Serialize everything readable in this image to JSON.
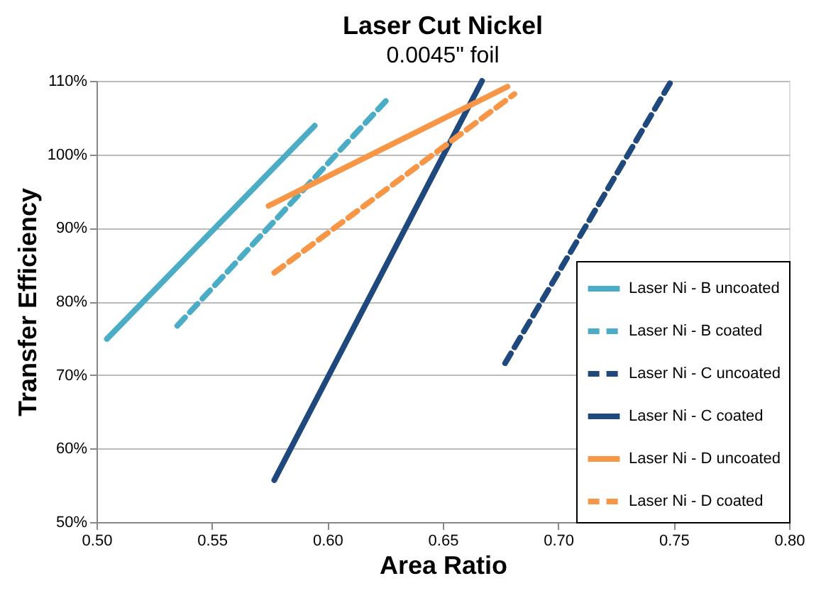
{
  "chart_data": {
    "type": "line",
    "title": "Laser Cut Nickel",
    "subtitle": "0.0045\" foil",
    "xlabel": "Area Ratio",
    "ylabel": "Transfer Efficiency",
    "xlim": [
      0.5,
      0.8
    ],
    "xticks": [
      {
        "value": 0.5,
        "label": "0.50"
      },
      {
        "value": 0.55,
        "label": "0.55"
      },
      {
        "value": 0.6,
        "label": "0.60"
      },
      {
        "value": 0.65,
        "label": "0.65"
      },
      {
        "value": 0.7,
        "label": "0.70"
      },
      {
        "value": 0.75,
        "label": "0.75"
      },
      {
        "value": 0.8,
        "label": "0.80"
      }
    ],
    "ylim": [
      50,
      110
    ],
    "yticks": [
      {
        "value": 50,
        "label": "50%"
      },
      {
        "value": 60,
        "label": "60%"
      },
      {
        "value": 70,
        "label": "70%"
      },
      {
        "value": 80,
        "label": "80%"
      },
      {
        "value": 90,
        "label": "90%"
      },
      {
        "value": 100,
        "label": "100%"
      },
      {
        "value": 110,
        "label": "110%"
      }
    ],
    "grid": "y",
    "legend": "bottom right",
    "marker": "none",
    "series": [
      {
        "name": "Laser Ni - B uncoated",
        "color": "#4bacc6",
        "line_style": "solid",
        "x": [
          0.5045,
          0.5945
        ],
        "values": [
          74.9,
          103.9
        ]
      },
      {
        "name": "Laser Ni - B  coated",
        "color": "#4bacc6",
        "line_style": "dashed",
        "x": [
          0.535,
          0.626
        ],
        "values": [
          76.7,
          107.5
        ]
      },
      {
        "name": "Laser Ni - C uncoated",
        "color": "#1f497d",
        "line_style": "dashed",
        "x": [
          0.677,
          0.749
        ],
        "values": [
          71.6,
          110
        ]
      },
      {
        "name": "Laser Ni - C  coated",
        "color": "#1f497d",
        "line_style": "solid",
        "x": [
          0.577,
          0.667
        ],
        "values": [
          55.7,
          110
        ]
      },
      {
        "name": "Laser Ni - D uncoated",
        "color": "#f79646",
        "line_style": "solid",
        "x": [
          0.5745,
          0.678
        ],
        "values": [
          93,
          109.2
        ]
      },
      {
        "name": "Laser Ni - D  coated",
        "color": "#f79646",
        "line_style": "dashed",
        "x": [
          0.577,
          0.681
        ],
        "values": [
          83.9,
          108.2
        ]
      }
    ]
  }
}
